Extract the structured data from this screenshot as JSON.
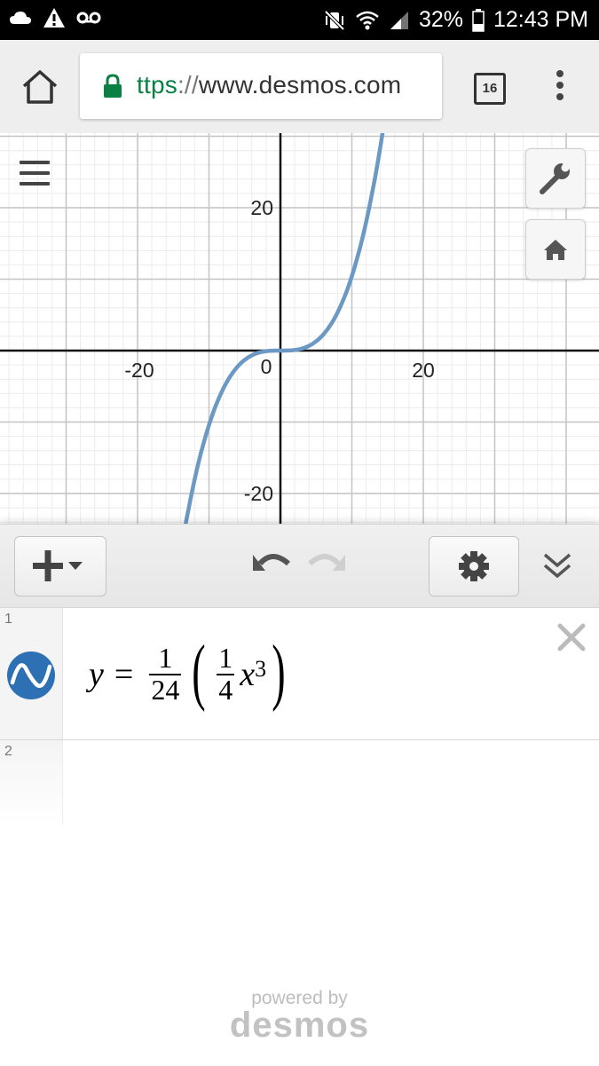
{
  "status_bar": {
    "battery": "32%",
    "time": "12:43 PM",
    "left_icons": [
      "cloud-icon",
      "warning-icon",
      "voicemail-icon"
    ],
    "right_icons": [
      "vibrate-mute-icon",
      "wifi-icon",
      "signal-icon",
      "battery-icon"
    ]
  },
  "browser": {
    "url_scheme": "ttps",
    "url_sep": "://",
    "url_host": "www.desmos.com",
    "tab_count": "16",
    "colors": {
      "lock": "#0b8043",
      "scheme": "#0b8043"
    }
  },
  "graph": {
    "x_ticks": [
      "-20",
      "0",
      "20"
    ],
    "y_ticks": [
      "20",
      "-20"
    ],
    "curve_color": "#6c98c4",
    "function": "y = (1/24)*((1/4)*x^3)",
    "x_range": [
      -21,
      25
    ],
    "y_range": [
      -24.5,
      30.2
    ]
  },
  "expressions": {
    "row1": {
      "number": "1",
      "y_var": "y",
      "equals": "=",
      "frac1_num": "1",
      "frac1_den": "24",
      "open_paren": "(",
      "frac2_num": "1",
      "frac2_den": "4",
      "x_var": "x",
      "exponent": "3",
      "close_paren": ")"
    },
    "row2": {
      "number": "2"
    }
  },
  "branding": {
    "powered_by": "powered by",
    "logo": "desmos"
  }
}
